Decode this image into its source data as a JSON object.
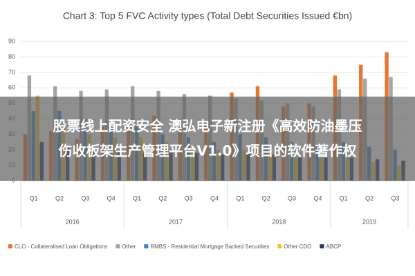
{
  "chart_data": {
    "type": "bar",
    "title": "Chart 3: Top 5 FVC Activity types (Total Debt Securities Issued €bn)",
    "categories": [
      "Q1",
      "Q2",
      "Q3",
      "Q4",
      "Q1",
      "Q2",
      "Q3",
      "Q4",
      "Q1",
      "Q2",
      "Q3",
      "Q4",
      "Q1",
      "Q2",
      "Q3"
    ],
    "year_groups": [
      "2016",
      "2017",
      "2018",
      "2019"
    ],
    "series": [
      {
        "name": "CLO - Collateralised Loan Obligations",
        "color": "#e8772e",
        "values": [
          30,
          32,
          27,
          35,
          32,
          42,
          35,
          38,
          57,
          61,
          48,
          50,
          68,
          75,
          83
        ]
      },
      {
        "name": "Other",
        "color": "#a5a5a5",
        "values": [
          68,
          61,
          58,
          59,
          61,
          58,
          56,
          55,
          53,
          52,
          50,
          48,
          59,
          66,
          67
        ]
      },
      {
        "name": "RMBS - Residential Mortgage Backed Securities",
        "color": "#3f86c0",
        "values": [
          45,
          45,
          40,
          38,
          35,
          30,
          28,
          25,
          30,
          28,
          25,
          22,
          25,
          22,
          20
        ]
      },
      {
        "name": "Other CDO",
        "color": "#f2c12e",
        "values": [
          55,
          35,
          30,
          28,
          28,
          25,
          22,
          20,
          20,
          18,
          15,
          15,
          15,
          12,
          10
        ]
      },
      {
        "name": "ABCP",
        "color": "#203864",
        "values": [
          25,
          22,
          20,
          20,
          18,
          18,
          18,
          17,
          18,
          17,
          15,
          15,
          15,
          14,
          13
        ]
      }
    ],
    "ylim": [
      0,
      90
    ],
    "yticks": [
      0,
      10,
      20,
      30,
      40,
      50,
      60,
      70,
      80,
      90
    ],
    "grid": true
  },
  "banner": {
    "lines": [
      "股票线上配资安全 澳弘电子新注册《高效防油墨压",
      "伤收板架生产管理平台V1.0》项目的软件著作权"
    ]
  }
}
